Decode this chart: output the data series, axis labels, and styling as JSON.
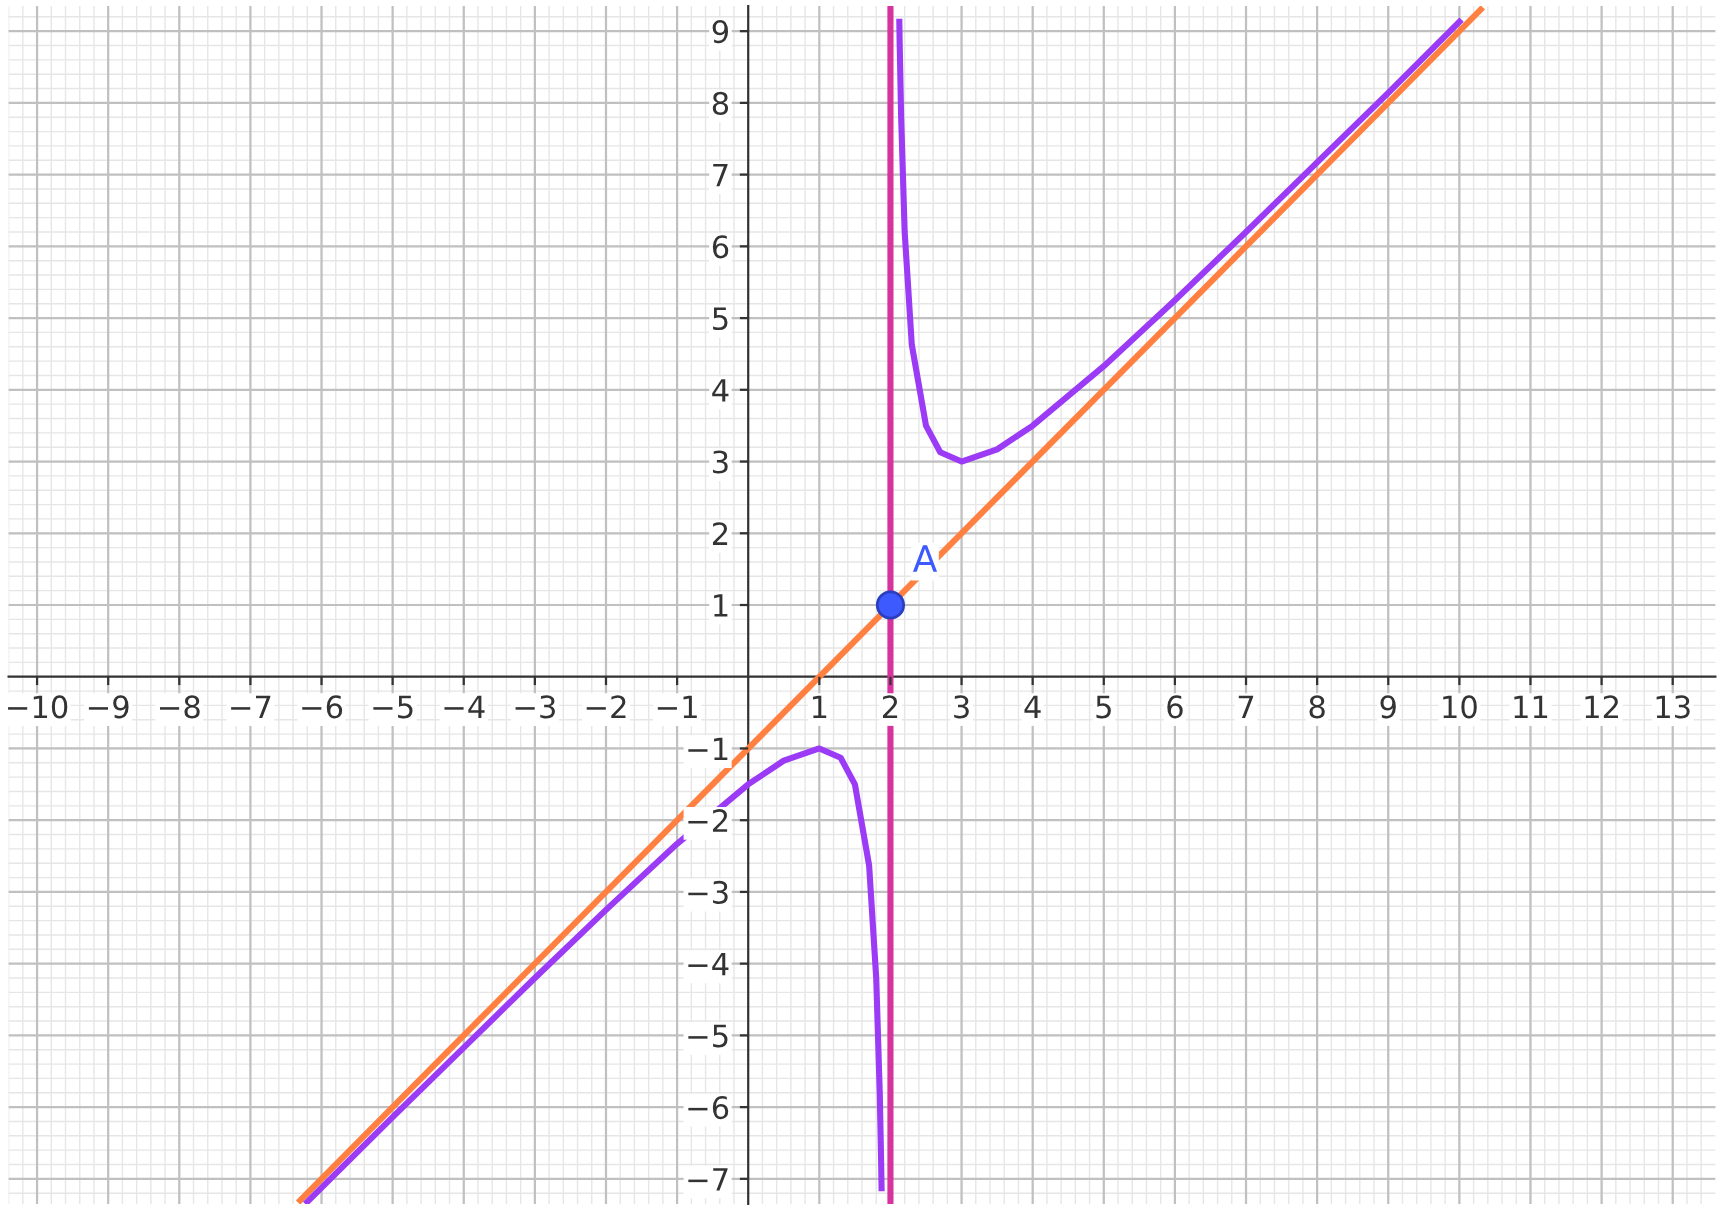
{
  "chart_data": {
    "type": "line",
    "grid": true,
    "xlim": [
      -10.4,
      13.6
    ],
    "ylim": [
      -7.35,
      9.35
    ],
    "xticks": [
      -10,
      -9,
      -8,
      -7,
      -6,
      -5,
      -4,
      -3,
      -2,
      -1,
      1,
      2,
      3,
      4,
      5,
      6,
      7,
      8,
      9,
      10,
      11,
      12,
      13
    ],
    "yticks": [
      -7,
      -6,
      -5,
      -4,
      -3,
      -2,
      -1,
      1,
      2,
      3,
      4,
      5,
      6,
      7,
      8,
      9
    ],
    "ref_lines": [
      {
        "axis": "x",
        "value": 2,
        "color": "#d6339e"
      }
    ],
    "series": [
      {
        "type": "line",
        "color": "#ff8040",
        "marker": "none",
        "x": [
          -6.3,
          10.3
        ],
        "values": [
          -7.3,
          9.3
        ]
      },
      {
        "type": "line",
        "color": "#9b3bf5",
        "marker": "none",
        "x": [
          -6.2,
          -5,
          -4,
          -3,
          -2,
          -1,
          0,
          0.5,
          1,
          1.3,
          1.5,
          1.7,
          1.8,
          1.85,
          1.87,
          1.875,
          2,
          2.125,
          2.13,
          2.15,
          2.2,
          2.3,
          2.5,
          2.7,
          3,
          3.5,
          4,
          5,
          6,
          7,
          8,
          9,
          10
        ],
        "values": [
          -7.32,
          -6.14,
          -5.17,
          -4.2,
          -3.25,
          -2.33,
          -1.5,
          -1.17,
          -1,
          -1.13,
          -1.5,
          -2.63,
          -4.2,
          -5.82,
          -6.82,
          -7.13,
          null,
          9.13,
          8.82,
          7.82,
          6.2,
          4.63,
          3.5,
          3.13,
          3,
          3.17,
          3.5,
          4.33,
          5.25,
          6.2,
          7.17,
          8.14,
          9.13
        ]
      },
      {
        "type": "scatter",
        "name": "A",
        "color": "#3d5afe",
        "marker": "circle",
        "x": [
          2
        ],
        "values": [
          1
        ]
      }
    ]
  }
}
